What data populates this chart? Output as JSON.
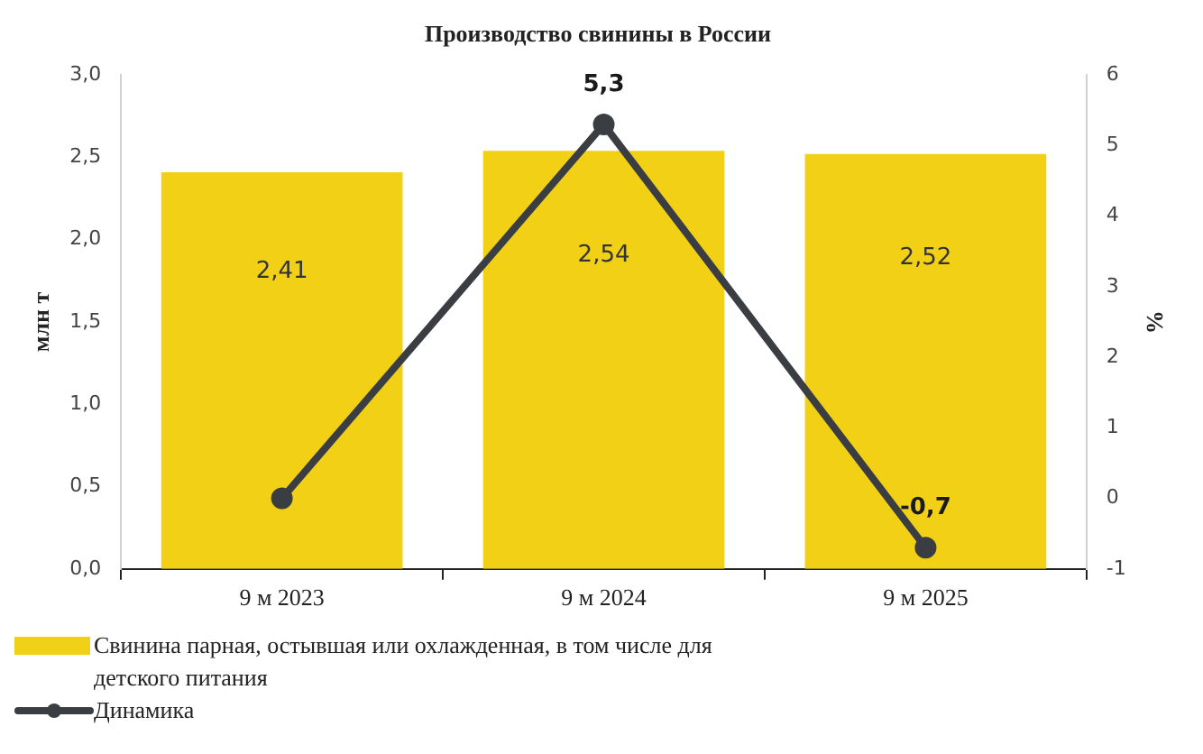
{
  "chart_data": {
    "type": "bar",
    "title": "Производство свинины в России",
    "ylabel": "млн т",
    "y2label": "%",
    "categories": [
      "9 м 2023",
      "9 м 2024",
      "9 м 2025"
    ],
    "series": [
      {
        "name": "Свинина парная, остывшая или охлажденная, в том числе для детского питания",
        "color": "#f2d015",
        "values": [
          2.41,
          2.54,
          2.52
        ],
        "value_labels": [
          "2,41",
          "2,54",
          "2,52"
        ]
      },
      {
        "name": "Динамика",
        "type": "line",
        "axis": "y2",
        "color": "#3a3d42",
        "values": [
          0,
          5.3,
          -0.7
        ],
        "value_labels": [
          null,
          "5,3",
          "-0,7"
        ]
      }
    ],
    "ylim": [
      0,
      3
    ],
    "yticks": [
      {
        "value": 0,
        "label": "0,0"
      },
      {
        "value": 0.5,
        "label": "0,5"
      },
      {
        "value": 1,
        "label": "1,0"
      },
      {
        "value": 1.5,
        "label": "1,5"
      },
      {
        "value": 2,
        "label": "2,0"
      },
      {
        "value": 2.5,
        "label": "2,5"
      },
      {
        "value": 3,
        "label": "3,0"
      }
    ],
    "y2lim": [
      -1,
      6
    ],
    "y2ticks": [
      -1,
      0,
      1,
      2,
      3,
      4,
      5,
      6
    ],
    "grid": false,
    "legend": "bottom left",
    "marker": "circle"
  }
}
